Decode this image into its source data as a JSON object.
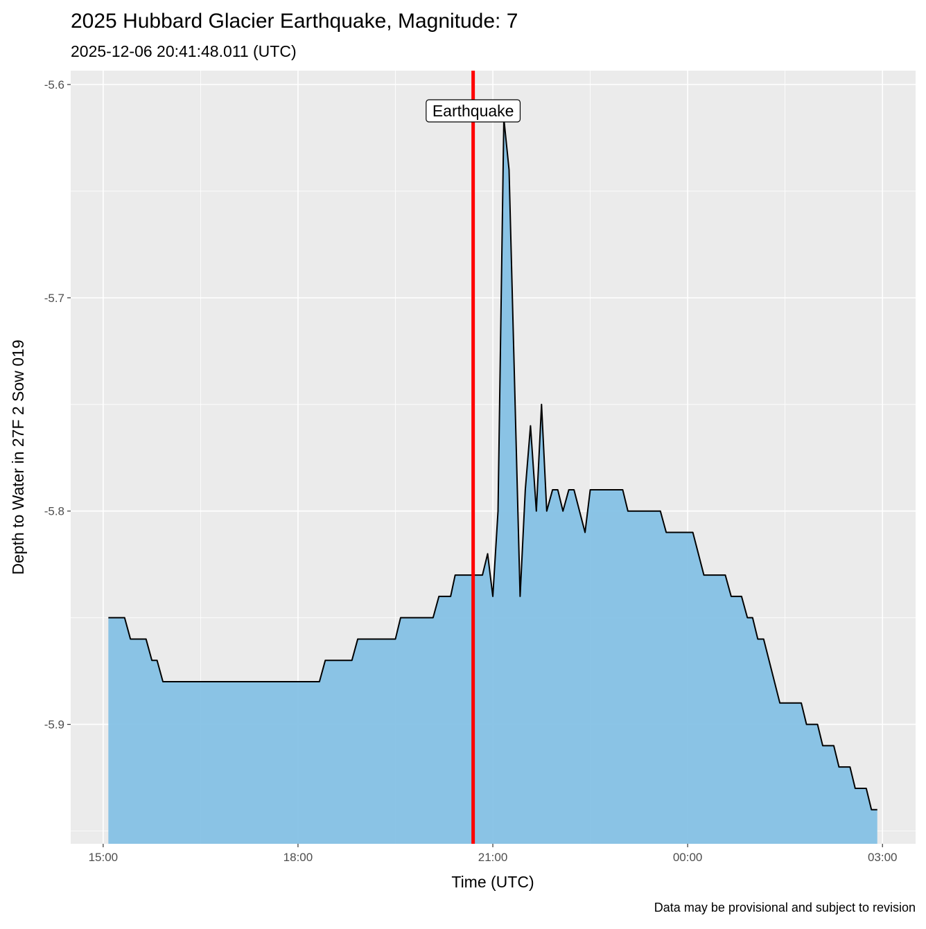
{
  "chart_data": {
    "type": "area",
    "title": "2025 Hubbard Glacier Earthquake, Magnitude: 7",
    "subtitle": "2025-12-06 20:41:48.011 (UTC)",
    "x_label": "Time (UTC)",
    "y_label": "Depth to Water in 27F 2 Sow 019",
    "caption": "Data may be provisional and subject to revision",
    "fill_color": "#85c1e5",
    "line_color": "#000000",
    "grid": true,
    "minor_grid": true,
    "x": [
      15.08,
      15.33,
      15.42,
      15.66,
      15.75,
      15.83,
      15.92,
      18.33,
      18.42,
      18.83,
      18.92,
      19.5,
      19.58,
      20.08,
      20.17,
      20.35,
      20.42,
      20.84,
      20.92,
      21.0,
      21.08,
      21.17,
      21.25,
      21.42,
      21.5,
      21.58,
      21.67,
      21.75,
      21.83,
      21.92,
      22.0,
      22.08,
      22.17,
      22.25,
      22.42,
      22.5,
      23.0,
      23.08,
      23.58,
      23.67,
      24.08,
      24.25,
      24.58,
      24.67,
      24.83,
      24.92,
      25.0,
      25.08,
      25.17,
      25.42,
      25.75,
      25.83,
      26.0,
      26.08,
      26.25,
      26.33,
      26.5,
      26.58,
      26.75,
      26.83,
      26.92
    ],
    "values": [
      -5.85,
      -5.85,
      -5.86,
      -5.86,
      -5.87,
      -5.87,
      -5.88,
      -5.88,
      -5.87,
      -5.87,
      -5.86,
      -5.86,
      -5.85,
      -5.85,
      -5.84,
      -5.84,
      -5.83,
      -5.83,
      -5.82,
      -5.84,
      -5.8,
      -5.616,
      -5.64,
      -5.84,
      -5.79,
      -5.76,
      -5.8,
      -5.75,
      -5.8,
      -5.79,
      -5.79,
      -5.8,
      -5.79,
      -5.79,
      -5.81,
      -5.79,
      -5.79,
      -5.8,
      -5.8,
      -5.81,
      -5.81,
      -5.83,
      -5.83,
      -5.84,
      -5.84,
      -5.85,
      -5.85,
      -5.86,
      -5.86,
      -5.89,
      -5.89,
      -5.9,
      -5.9,
      -5.91,
      -5.91,
      -5.92,
      -5.92,
      -5.93,
      -5.93,
      -5.94,
      -5.94
    ],
    "xlim": [
      14.5,
      27.51
    ],
    "ylim": [
      -5.956,
      -5.5935
    ],
    "xticks": [
      {
        "value": 15,
        "label": "15:00"
      },
      {
        "value": 18,
        "label": "18:00"
      },
      {
        "value": 21,
        "label": "21:00"
      },
      {
        "value": 24,
        "label": "00:00"
      },
      {
        "value": 27,
        "label": "03:00"
      }
    ],
    "yticks": [
      -5.9,
      -5.8,
      -5.7,
      -5.6
    ],
    "event": {
      "label": "Earthquake",
      "x": 20.697,
      "color": "#ff0000"
    }
  }
}
